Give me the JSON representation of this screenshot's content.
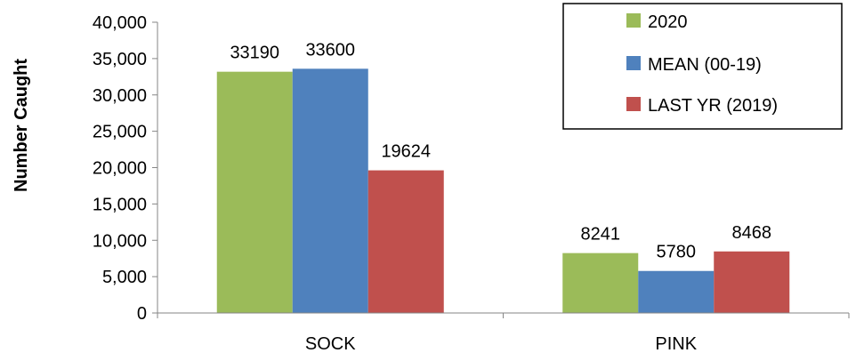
{
  "chart_data": {
    "type": "bar",
    "title": "",
    "xlabel": "",
    "ylabel": "Number Caught",
    "ylim": [
      0,
      40000
    ],
    "yticks": [
      0,
      5000,
      10000,
      15000,
      20000,
      25000,
      30000,
      35000,
      40000
    ],
    "ytick_labels": [
      "0",
      "5,000",
      "10,000",
      "15,000",
      "20,000",
      "25,000",
      "30,000",
      "35,000",
      "40,000"
    ],
    "categories": [
      "SOCK",
      "PINK"
    ],
    "series": [
      {
        "name": "2020",
        "color": "#9BBB59",
        "values": [
          33190,
          8241
        ],
        "labels": [
          "33190",
          "8241"
        ]
      },
      {
        "name": "MEAN (00-19)",
        "color": "#4F81BD",
        "values": [
          33600,
          5780
        ],
        "labels": [
          "33600",
          "5780"
        ]
      },
      {
        "name": "LAST YR (2019)",
        "color": "#C0504D",
        "values": [
          19624,
          8468
        ],
        "labels": [
          "19624",
          "8468"
        ]
      }
    ],
    "grid": false,
    "legend_position": "top-right"
  }
}
